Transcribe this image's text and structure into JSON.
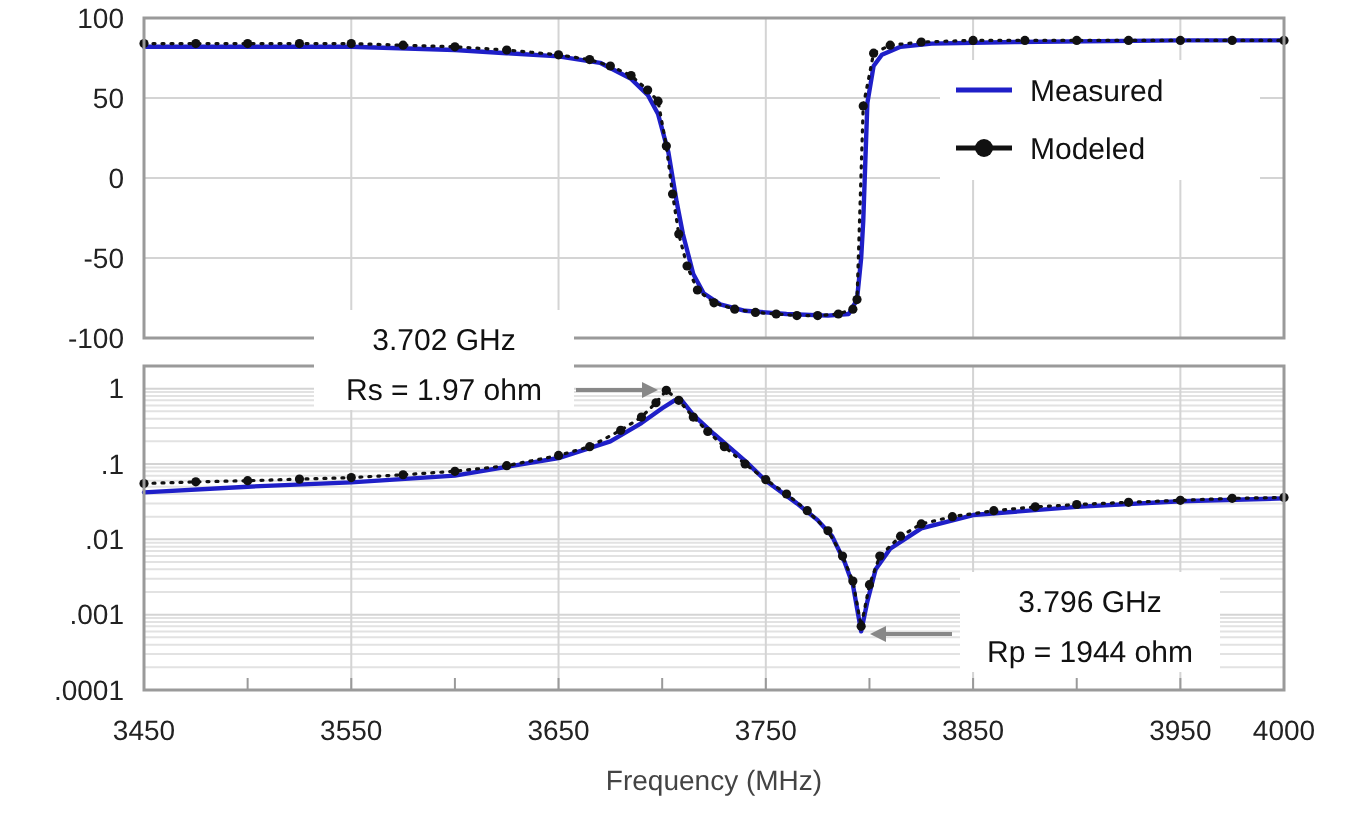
{
  "chart_data": [
    {
      "type": "line",
      "xlim": [
        3450,
        4000
      ],
      "ylim": [
        -100,
        100
      ],
      "yticks": [
        -100,
        -50,
        0,
        50,
        100
      ],
      "xticks": [
        3450,
        3550,
        3650,
        3750,
        3850,
        3950,
        4000
      ],
      "tick_labels": "y",
      "grid": true,
      "legend": "right",
      "series": [
        {
          "name": "Measured",
          "color": "#1f1fc8",
          "marker": "none",
          "line_style": "solid",
          "x": [
            3450,
            3500,
            3550,
            3600,
            3625,
            3650,
            3670,
            3685,
            3693,
            3698,
            3703,
            3707,
            3710,
            3715,
            3720,
            3728,
            3740,
            3760,
            3780,
            3790,
            3794,
            3796,
            3797,
            3798,
            3799,
            3802,
            3806,
            3815,
            3830,
            3870,
            3950,
            4000
          ],
          "values": [
            82,
            82,
            82,
            80,
            78,
            76,
            72,
            62,
            52,
            40,
            16,
            -15,
            -35,
            -60,
            -72,
            -79,
            -83,
            -85,
            -86,
            -85,
            -76,
            -50,
            -27,
            10,
            47,
            70,
            77,
            82,
            84,
            85,
            86,
            86
          ]
        },
        {
          "name": "Modeled",
          "color": "#111111",
          "marker": "circle",
          "line_style": "dotted",
          "x": [
            3450,
            3475,
            3500,
            3525,
            3550,
            3575,
            3600,
            3625,
            3650,
            3665,
            3675,
            3685,
            3693,
            3698,
            3702,
            3705,
            3708,
            3712,
            3717,
            3725,
            3735,
            3745,
            3755,
            3765,
            3775,
            3785,
            3792,
            3794,
            3797,
            3802,
            3810,
            3825,
            3850,
            3875,
            3900,
            3925,
            3950,
            3975,
            4000
          ],
          "values": [
            84,
            84,
            84,
            84,
            84,
            83,
            82,
            80,
            77,
            74,
            70,
            64,
            55,
            48,
            20,
            -10,
            -35,
            -55,
            -70,
            -78,
            -82,
            -84,
            -85,
            -86,
            -86,
            -85,
            -82,
            -76,
            45,
            78,
            83,
            85,
            86,
            86,
            86,
            86,
            86,
            86,
            86
          ]
        }
      ]
    },
    {
      "type": "line",
      "xlabel": "Frequency (MHz)",
      "xlim": [
        3450,
        4000
      ],
      "xticks": [
        3450,
        {
          "value": 3500,
          "label": null
        },
        3550,
        {
          "value": 3600,
          "label": null
        },
        3650,
        {
          "value": 3700,
          "label": null
        },
        3750,
        {
          "value": 3800,
          "label": null
        },
        3850,
        {
          "value": 3900,
          "label": null
        },
        3950,
        4000
      ],
      "ylim": [
        0.0001,
        2
      ],
      "yticks": [
        {
          "value": 0.0001,
          "label": ".0001"
        },
        {
          "value": 0.001,
          "label": ".001"
        },
        {
          "value": 0.01,
          "label": ".01"
        },
        {
          "value": 0.1,
          "label": ".1"
        },
        1
      ],
      "log": true,
      "grid": true,
      "annotations": [
        "3.702 GHz\nRs = 1.97 ohm",
        "3.796 GHz\nRp = 1944 ohm"
      ],
      "series": [
        {
          "color": "#1f1fc8",
          "marker": "none",
          "line_style": "solid",
          "x": [
            3450,
            3500,
            3550,
            3600,
            3650,
            3675,
            3690,
            3700,
            3706,
            3709,
            3715,
            3725,
            3740,
            3750,
            3765,
            3775,
            3782,
            3788,
            3792,
            3796,
            3799,
            3803,
            3810,
            3825,
            3850,
            3900,
            3950,
            4000
          ],
          "values": [
            0.042,
            0.05,
            0.057,
            0.07,
            0.12,
            0.2,
            0.35,
            0.55,
            0.7,
            0.72,
            0.45,
            0.25,
            0.11,
            0.06,
            0.03,
            0.018,
            0.011,
            0.005,
            0.0025,
            0.0006,
            0.0015,
            0.004,
            0.0075,
            0.014,
            0.021,
            0.027,
            0.032,
            0.035
          ]
        },
        {
          "color": "#111111",
          "marker": "circle",
          "line_style": "dotted",
          "x": [
            3450,
            3475,
            3500,
            3525,
            3550,
            3575,
            3600,
            3625,
            3650,
            3665,
            3680,
            3690,
            3697,
            3702,
            3708,
            3715,
            3722,
            3730,
            3740,
            3750,
            3760,
            3770,
            3780,
            3787,
            3792,
            3796,
            3800,
            3805,
            3815,
            3825,
            3840,
            3860,
            3880,
            3900,
            3925,
            3950,
            3975,
            4000
          ],
          "values": [
            0.055,
            0.058,
            0.06,
            0.063,
            0.066,
            0.072,
            0.08,
            0.095,
            0.13,
            0.17,
            0.28,
            0.42,
            0.65,
            0.95,
            0.7,
            0.42,
            0.27,
            0.17,
            0.1,
            0.062,
            0.04,
            0.024,
            0.013,
            0.006,
            0.0028,
            0.0007,
            0.0025,
            0.006,
            0.011,
            0.016,
            0.02,
            0.024,
            0.027,
            0.029,
            0.031,
            0.033,
            0.035,
            0.036
          ]
        }
      ]
    }
  ]
}
